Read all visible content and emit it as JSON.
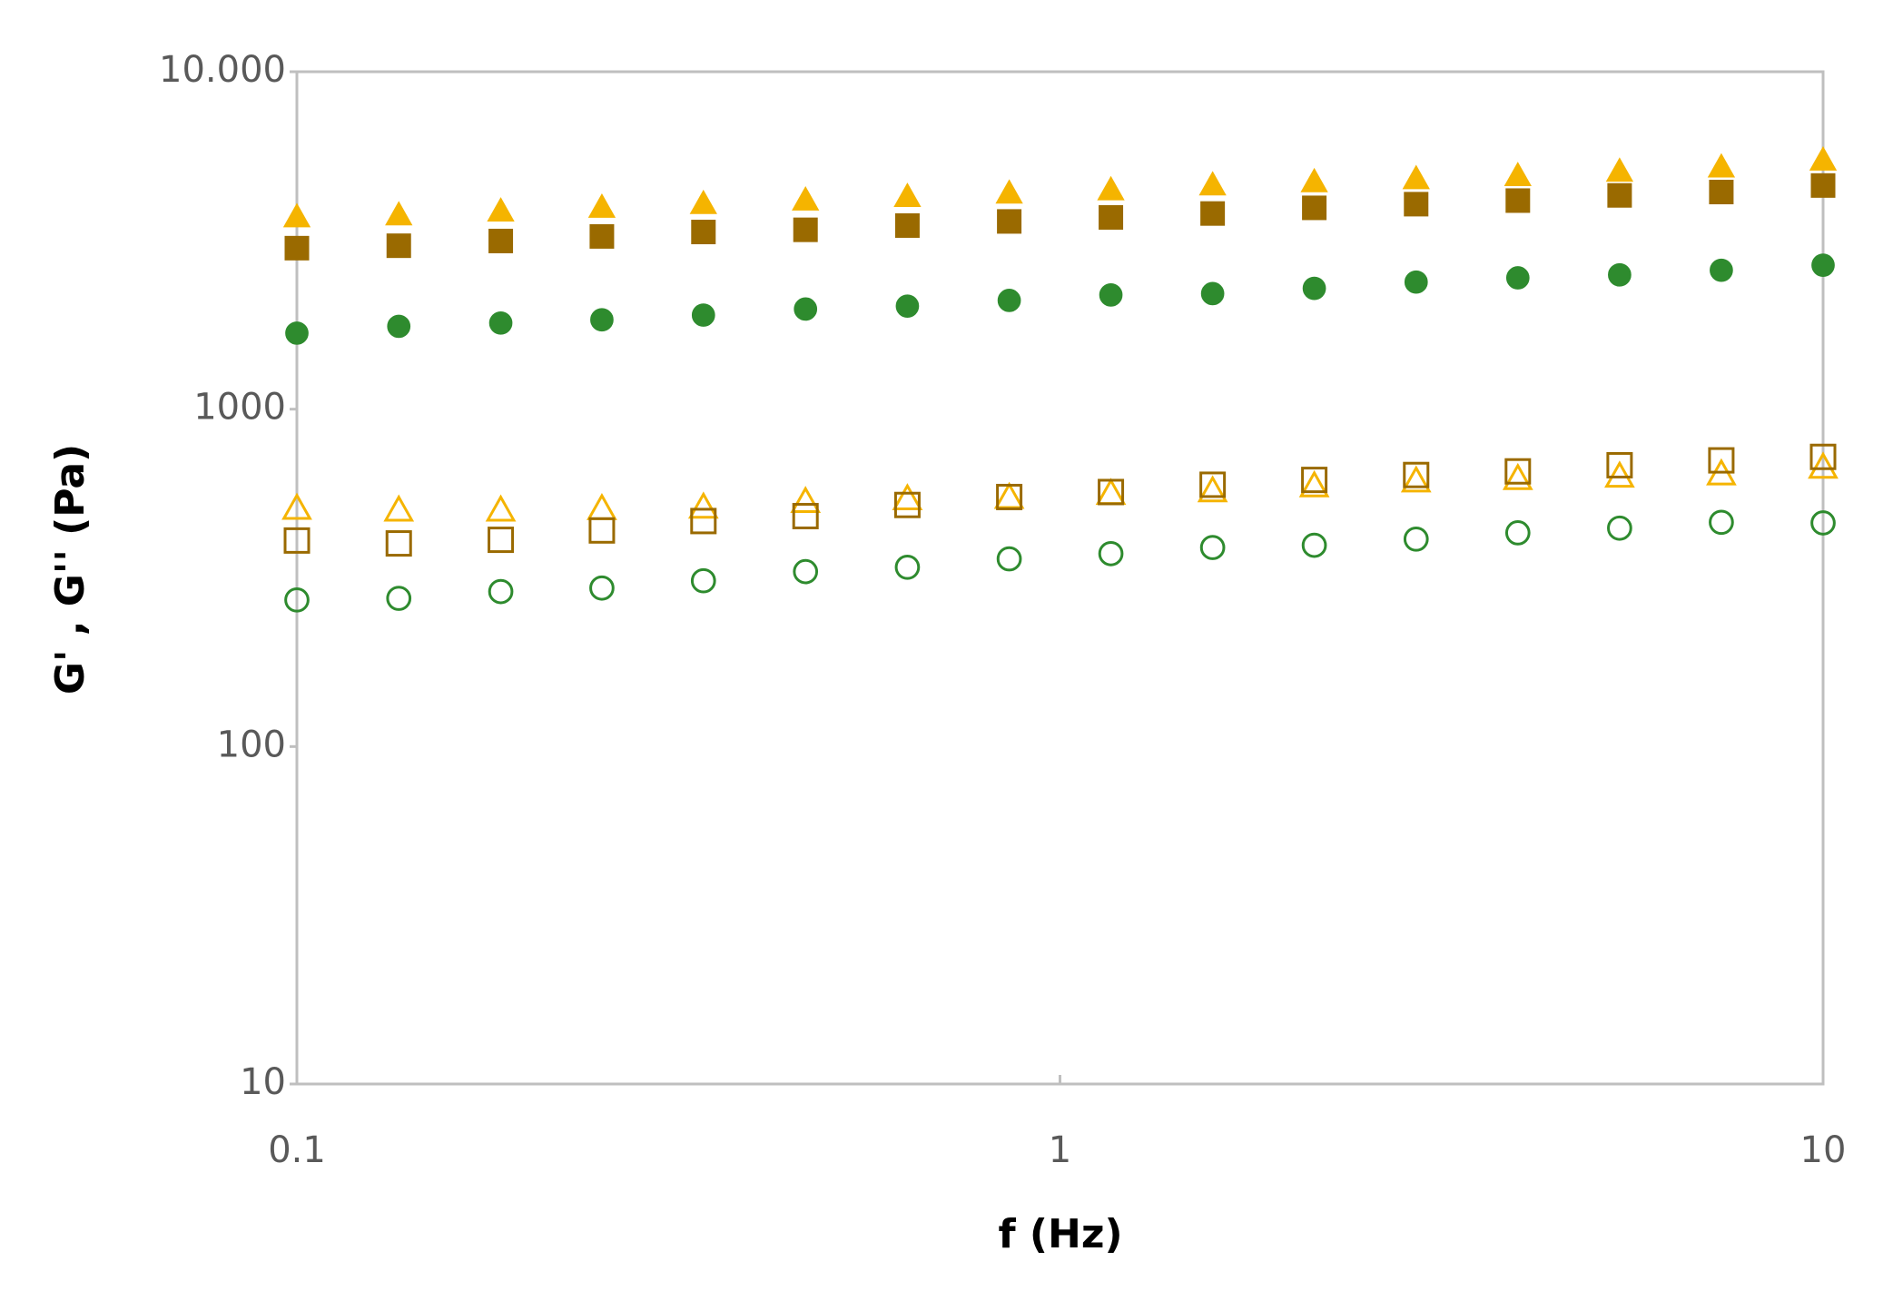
{
  "chart_data": {
    "type": "scatter",
    "x_label": "f (Hz)",
    "y_label": "G' , G'' (Pa)",
    "x": [
      0.1,
      0.136,
      0.185,
      0.251,
      0.341,
      0.464,
      0.631,
      0.858,
      1.166,
      1.585,
      2.154,
      2.929,
      3.981,
      5.412,
      7.356,
      10
    ],
    "xscale": "log",
    "yscale": "log",
    "xlim": [
      0.1,
      10
    ],
    "xticks": [
      0.1,
      1,
      10
    ],
    "ylim": [
      10,
      10000
    ],
    "yticks": [
      10,
      100,
      1000,
      {
        "value": 10000,
        "label": "10.000"
      }
    ],
    "grid": false,
    "series": [
      {
        "color": "#f5b400",
        "marker": "triangle",
        "filled": true,
        "values": [
          3700,
          3750,
          3850,
          3950,
          4050,
          4150,
          4250,
          4350,
          4450,
          4600,
          4700,
          4800,
          4900,
          5050,
          5200,
          5450
        ]
      },
      {
        "color": "#9a6a00",
        "marker": "square",
        "filled": true,
        "values": [
          3000,
          3050,
          3150,
          3250,
          3350,
          3400,
          3500,
          3600,
          3700,
          3800,
          3950,
          4050,
          4150,
          4300,
          4400,
          4600
        ]
      },
      {
        "color": "#2e8b2e",
        "marker": "circle",
        "filled": true,
        "values": [
          1680,
          1760,
          1800,
          1840,
          1900,
          1980,
          2020,
          2100,
          2180,
          2200,
          2280,
          2380,
          2450,
          2500,
          2580,
          2670
        ]
      },
      {
        "color": "#f5b400",
        "marker": "triangle",
        "filled": false,
        "values": [
          506,
          500,
          500,
          505,
          510,
          530,
          540,
          545,
          560,
          570,
          590,
          610,
          620,
          630,
          640,
          670
        ]
      },
      {
        "color": "#9a6a00",
        "marker": "square",
        "filled": false,
        "values": [
          408,
          400,
          410,
          437,
          466,
          482,
          520,
          549,
          568,
          597,
          617,
          638,
          654,
          682,
          705,
          722
        ]
      },
      {
        "color": "#2e8b2e",
        "marker": "circle",
        "filled": false,
        "values": [
          272,
          275,
          288,
          295,
          310,
          330,
          340,
          360,
          373,
          389,
          395,
          412,
          430,
          444,
          462,
          460
        ]
      }
    ]
  }
}
